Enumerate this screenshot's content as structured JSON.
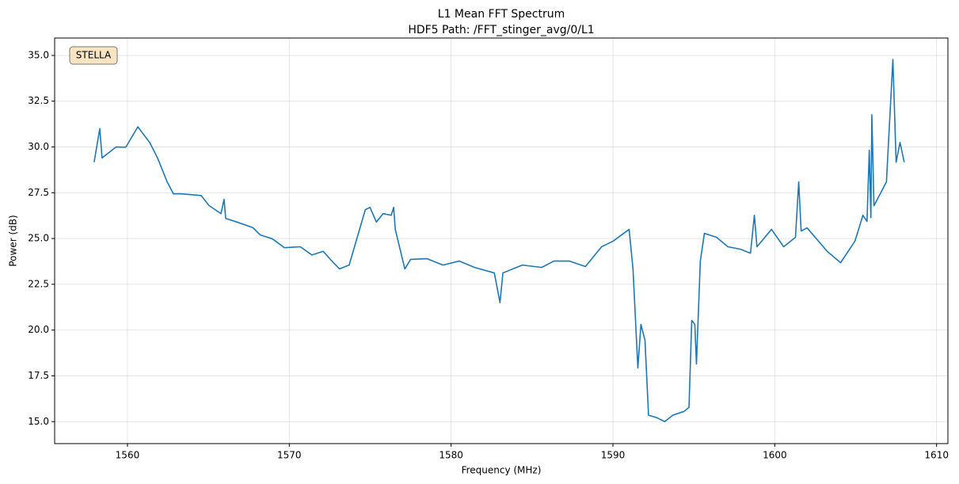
{
  "chart_data": {
    "type": "line",
    "title": "L1 Mean FFT Spectrum",
    "subtitle": "HDF5 Path: /FFT_stinger_avg/0/L1",
    "xlabel": "Frequency (MHz)",
    "ylabel": "Power (dB)",
    "annotation": "STELLA",
    "grid": true,
    "xlim": [
      1555.5,
      1610.7
    ],
    "ylim": [
      13.8,
      35.95
    ],
    "xticks": [
      1560,
      1570,
      1580,
      1590,
      1600,
      1610
    ],
    "yticks": [
      {
        "value": 15,
        "label": "15.0"
      },
      {
        "value": 17.5,
        "label": "17.5"
      },
      {
        "value": 20,
        "label": "20.0"
      },
      {
        "value": 22.5,
        "label": "22.5"
      },
      {
        "value": 25,
        "label": "25.0"
      },
      {
        "value": 27.5,
        "label": "27.5"
      },
      {
        "value": 30,
        "label": "30.0"
      },
      {
        "value": 32.5,
        "label": "32.5"
      },
      {
        "value": 35,
        "label": "35.0"
      }
    ],
    "x": [
      1557.94,
      1558.29,
      1558.43,
      1559.3,
      1559.9,
      1560.64,
      1561.37,
      1561.86,
      1562.45,
      1562.84,
      1563.33,
      1564.55,
      1565.04,
      1565.78,
      1565.97,
      1566.07,
      1566.76,
      1567.74,
      1568.2,
      1568.96,
      1569.7,
      1570.68,
      1571.4,
      1572.1,
      1572.6,
      1573.1,
      1573.7,
      1574.2,
      1574.7,
      1574.99,
      1575.38,
      1575.8,
      1576.3,
      1576.45,
      1576.55,
      1577.14,
      1577.5,
      1578.5,
      1579.5,
      1580.5,
      1581.45,
      1582.67,
      1583.02,
      1583.2,
      1584.4,
      1585.6,
      1586.35,
      1587.3,
      1588.3,
      1589.3,
      1590.0,
      1591.0,
      1591.24,
      1591.54,
      1591.73,
      1591.98,
      1592.2,
      1592.7,
      1593.2,
      1593.7,
      1594.4,
      1594.7,
      1594.87,
      1595.06,
      1595.16,
      1595.4,
      1595.65,
      1596.4,
      1597.1,
      1597.86,
      1598.5,
      1598.74,
      1598.9,
      1599.8,
      1600.55,
      1601.28,
      1601.48,
      1601.63,
      1602.0,
      1603.25,
      1604.07,
      1604.95,
      1605.45,
      1605.7,
      1605.84,
      1605.94,
      1606.0,
      1606.13,
      1606.9,
      1607.3,
      1607.5,
      1607.74,
      1608.0
    ],
    "series": [
      {
        "name": "L1",
        "color": "#1f77b4",
        "values": [
          29.17,
          31.0,
          29.4,
          30.0,
          29.99,
          31.1,
          30.25,
          29.4,
          28.1,
          27.44,
          27.44,
          27.35,
          26.8,
          26.36,
          27.14,
          26.1,
          25.9,
          25.6,
          25.2,
          24.98,
          24.5,
          24.55,
          24.1,
          24.3,
          23.8,
          23.34,
          23.55,
          25.07,
          26.58,
          26.7,
          25.9,
          26.36,
          26.27,
          26.7,
          25.5,
          23.34,
          23.86,
          23.9,
          23.55,
          23.77,
          23.42,
          23.12,
          21.5,
          23.12,
          23.55,
          23.42,
          23.77,
          23.77,
          23.47,
          24.55,
          24.85,
          25.5,
          23.34,
          17.93,
          20.31,
          19.45,
          15.35,
          15.22,
          15.0,
          15.35,
          15.56,
          15.78,
          20.53,
          20.31,
          18.15,
          23.77,
          25.28,
          25.07,
          24.55,
          24.42,
          24.2,
          26.27,
          24.55,
          25.5,
          24.55,
          25.07,
          28.09,
          25.41,
          25.58,
          24.29,
          23.68,
          24.85,
          26.27,
          25.93,
          29.82,
          26.14,
          31.76,
          26.79,
          28.09,
          34.78,
          29.17,
          30.25,
          29.17
        ]
      }
    ]
  }
}
